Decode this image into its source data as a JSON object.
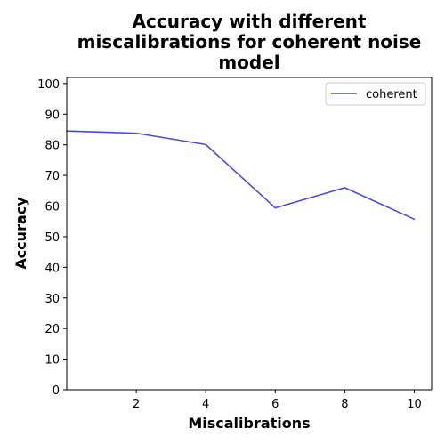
{
  "chart_data": {
    "type": "line",
    "title_lines": [
      "Accuracy with different",
      "miscalibrations for coherent noise",
      "model"
    ],
    "xlabel": "Miscalibrations",
    "ylabel": "Accuracy",
    "xlim": [
      0,
      10.5
    ],
    "ylim": [
      0,
      102
    ],
    "xticks": [
      2,
      4,
      6,
      8,
      10
    ],
    "yticks": [
      0,
      10,
      20,
      30,
      40,
      50,
      60,
      70,
      80,
      90,
      100
    ],
    "grid": false,
    "legend_position": "top-right",
    "series": [
      {
        "name": "coherent",
        "color": "#4b4bdb",
        "x": [
          0,
          2,
          4,
          6,
          8,
          10
        ],
        "y": [
          84.5,
          83.8,
          80.1,
          59.4,
          66.0,
          55.7
        ]
      }
    ]
  }
}
